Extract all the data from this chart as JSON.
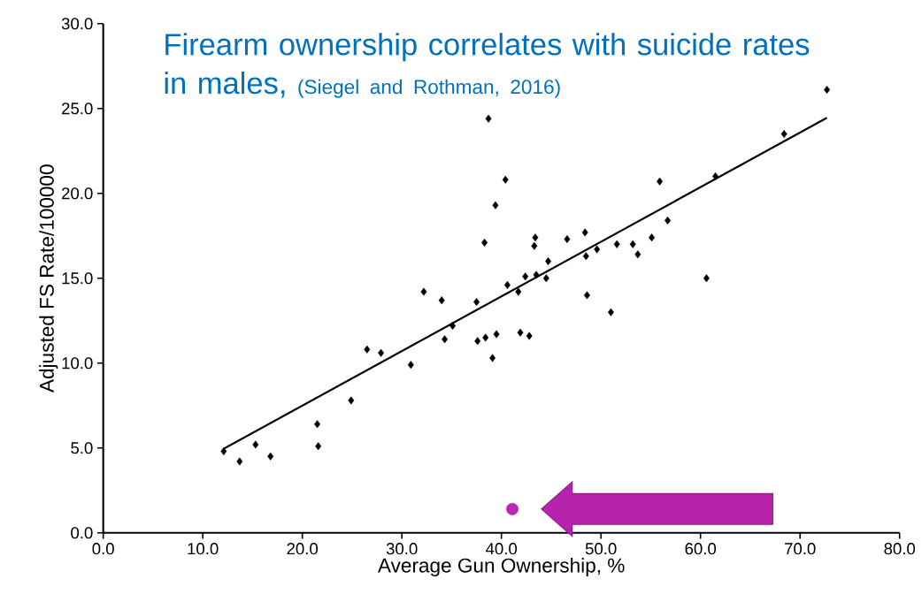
{
  "chart_data": {
    "type": "scatter",
    "title": "Firearm ownership correlates with suicide rates in males,",
    "annotations": [
      "(Siegel and Rothman, 2016)"
    ],
    "xlabel": "Average Gun Ownership, %",
    "ylabel": "Adjusted FS Rate/100000",
    "xlim": [
      0,
      80
    ],
    "ylim": [
      0,
      30
    ],
    "xticks": [
      {
        "value": 0,
        "label": "0.0"
      },
      {
        "value": 10,
        "label": "10.0"
      },
      {
        "value": 20,
        "label": "20.0"
      },
      {
        "value": 30,
        "label": "30.0"
      },
      {
        "value": 40,
        "label": "40.0"
      },
      {
        "value": 50,
        "label": "50.0"
      },
      {
        "value": 60,
        "label": "60.0"
      },
      {
        "value": 70,
        "label": "70.0"
      },
      {
        "value": 80,
        "label": "80.0"
      }
    ],
    "yticks": [
      {
        "value": 0,
        "label": "0.0"
      },
      {
        "value": 5,
        "label": "5.0"
      },
      {
        "value": 10,
        "label": "10.0"
      },
      {
        "value": 15,
        "label": "15.0"
      },
      {
        "value": 20,
        "label": "20.0"
      },
      {
        "value": 25,
        "label": "25.0"
      },
      {
        "value": 30,
        "label": "30.0"
      }
    ],
    "grid": false,
    "marker": "diamond",
    "series": [
      {
        "color": "#000000",
        "x": [
          12.1,
          13.7,
          15.3,
          16.8,
          21.5,
          21.6,
          24.9,
          26.5,
          27.9,
          30.9,
          32.2,
          34.0,
          34.3,
          35.1,
          37.5,
          37.6,
          38.3,
          38.4,
          38.7,
          39.1,
          39.4,
          39.5,
          40.4,
          40.6,
          41.7,
          41.9,
          42.4,
          42.8,
          43.3,
          43.4,
          43.5,
          44.5,
          44.7,
          46.6,
          48.4,
          48.5,
          48.6,
          49.6,
          51.0,
          51.6,
          53.2,
          53.7,
          55.1,
          55.9,
          56.7,
          60.6,
          61.5,
          68.4,
          72.7
        ],
        "values": [
          4.8,
          4.2,
          5.2,
          4.5,
          6.4,
          5.1,
          7.8,
          10.8,
          10.6,
          9.9,
          14.2,
          13.7,
          11.4,
          12.2,
          13.6,
          11.3,
          17.1,
          11.5,
          24.4,
          10.3,
          19.3,
          11.7,
          20.8,
          14.6,
          14.2,
          11.8,
          15.1,
          11.6,
          16.9,
          17.4,
          15.2,
          15.0,
          16.0,
          17.3,
          17.7,
          16.3,
          14.0,
          16.7,
          13.0,
          17.0,
          17.0,
          16.4,
          17.4,
          20.7,
          18.4,
          15.0,
          21.0,
          23.5,
          26.1
        ]
      },
      {
        "type": "line",
        "color": "#000000",
        "marker": "none",
        "x": [
          12.1,
          72.7
        ],
        "values": [
          4.95,
          24.45
        ]
      },
      {
        "color": "#c026b4",
        "marker": "circle",
        "x": [
          41.1
        ],
        "values": [
          1.4
        ]
      }
    ]
  }
}
